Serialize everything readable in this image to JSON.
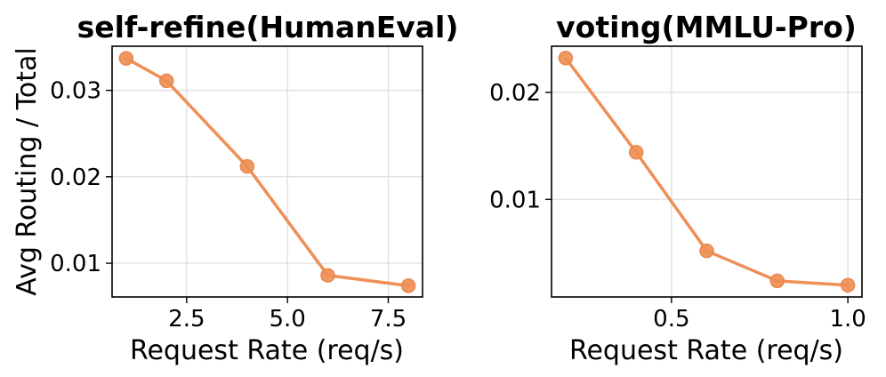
{
  "ylabel": "Avg Routing / Total",
  "colors": {
    "series": "#ee8f55",
    "marker": "#ee8f55",
    "marker_edge": "#e9884e",
    "grid": "#dcdcdc"
  },
  "chart_data": [
    {
      "type": "line",
      "title": "self-refine(HumanEval)",
      "xlabel": "Request Rate (req/s)",
      "x": [
        1,
        2,
        4,
        6,
        8
      ],
      "values": [
        0.0337,
        0.0311,
        0.0212,
        0.0086,
        0.0074
      ],
      "xlim": [
        0.65,
        8.35
      ],
      "ylim": [
        0.0061,
        0.0351
      ],
      "xticks": [
        2.5,
        5.0,
        7.5
      ],
      "xtick_labels": [
        "2.5",
        "5.0",
        "7.5"
      ],
      "yticks": [
        0.01,
        0.02,
        0.03
      ],
      "ytick_labels": [
        "0.01",
        "0.02",
        "0.03"
      ],
      "grid": true
    },
    {
      "type": "line",
      "title": "voting(MMLU-Pro)",
      "xlabel": "Request Rate (req/s)",
      "x": [
        0.2,
        0.4,
        0.6,
        0.8,
        1.0
      ],
      "values": [
        0.0232,
        0.0144,
        0.0052,
        0.0024,
        0.002
      ],
      "xlim": [
        0.16,
        1.04
      ],
      "ylim": [
        0.0009,
        0.0243
      ],
      "xticks": [
        0.5,
        1.0
      ],
      "xtick_labels": [
        "0.5",
        "1.0"
      ],
      "yticks": [
        0.01,
        0.02
      ],
      "ytick_labels": [
        "0.01",
        "0.02"
      ],
      "grid": true
    }
  ]
}
